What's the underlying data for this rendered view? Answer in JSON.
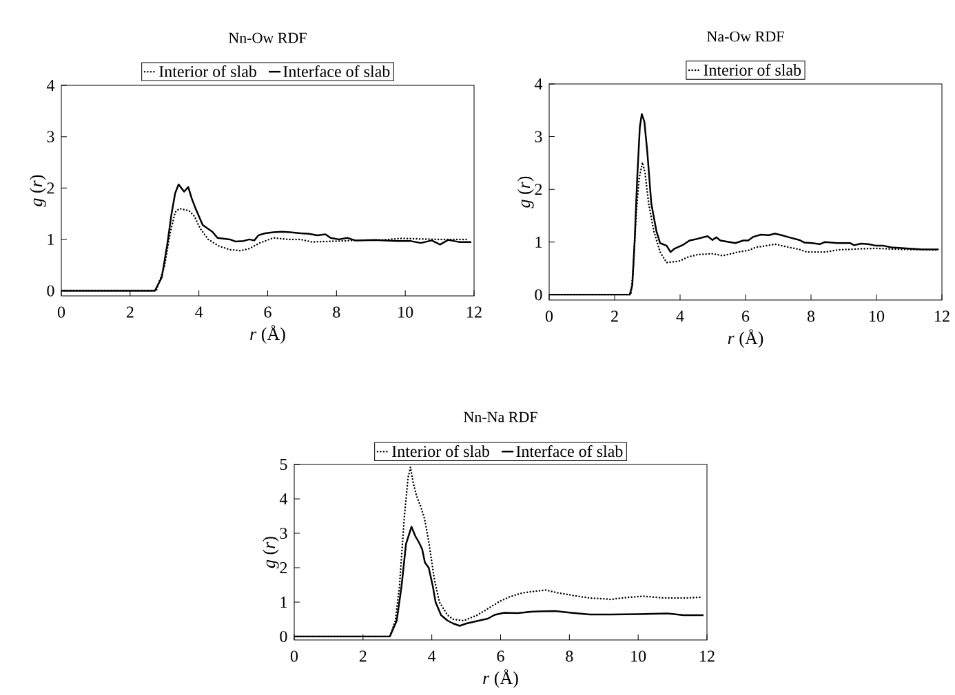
{
  "chart_data": [
    {
      "type": "line",
      "title": "Nn-Ow RDF",
      "xlabel": "*r* (Å)",
      "ylabel": "*g* (*r*)",
      "xlim": [
        0,
        12
      ],
      "ylim": [
        -0.1,
        4
      ],
      "xticks": [
        0,
        2,
        4,
        6,
        8,
        10,
        12
      ],
      "yticks": [
        0,
        1,
        2,
        3,
        4
      ],
      "legend": "top",
      "series": [
        {
          "name": "Interior of slab",
          "color": "#000000",
          "line_style": "dotted",
          "x": [
            0,
            2.76,
            3.0,
            3.16,
            3.31,
            3.43,
            3.71,
            3.87,
            4.03,
            4.27,
            4.58,
            4.9,
            5.22,
            5.46,
            5.77,
            6.17,
            6.57,
            6.96,
            7.28,
            7.76,
            8.55,
            9.34,
            9.9,
            10.93,
            11.8
          ],
          "values": [
            0,
            0,
            0.48,
            1.11,
            1.53,
            1.6,
            1.56,
            1.45,
            1.22,
            1.0,
            0.87,
            0.8,
            0.78,
            0.82,
            0.93,
            1.03,
            1.0,
            1.0,
            0.95,
            0.96,
            0.98,
            0.99,
            1.02,
            1.0,
            1.0
          ]
        },
        {
          "name": "Interface of slab",
          "color": "#000000",
          "line_style": "solid",
          "x": [
            0,
            2.72,
            2.92,
            3.08,
            3.2,
            3.31,
            3.41,
            3.57,
            3.69,
            3.79,
            3.91,
            4.11,
            4.39,
            4.54,
            4.9,
            5.06,
            5.3,
            5.46,
            5.61,
            5.73,
            5.93,
            6.17,
            6.41,
            6.65,
            6.96,
            7.2,
            7.44,
            7.68,
            7.83,
            8.07,
            8.31,
            8.55,
            9.1,
            9.74,
            10.14,
            10.45,
            10.77,
            11.01,
            11.25,
            11.56,
            11.92
          ],
          "values": [
            0,
            0,
            0.26,
            0.9,
            1.48,
            1.9,
            2.07,
            1.93,
            2.02,
            1.8,
            1.59,
            1.28,
            1.15,
            1.03,
            1.0,
            0.96,
            0.97,
            1.0,
            0.98,
            1.08,
            1.12,
            1.14,
            1.15,
            1.14,
            1.12,
            1.11,
            1.08,
            1.1,
            1.03,
            1.0,
            1.03,
            0.98,
            0.99,
            0.97,
            0.97,
            0.93,
            0.98,
            0.9,
            0.99,
            0.95,
            0.95
          ]
        }
      ]
    },
    {
      "type": "line",
      "title": "Na-Ow RDF",
      "xlabel": "*r* (Å)",
      "ylabel": "*g* (*r*)",
      "xlim": [
        0,
        12
      ],
      "ylim": [
        -0.1,
        4
      ],
      "xticks": [
        0,
        2,
        4,
        6,
        8,
        10,
        12
      ],
      "yticks": [
        0,
        1,
        2,
        3,
        4
      ],
      "legend": "top",
      "series": [
        {
          "name": "Interior of slab",
          "color": "#000000",
          "line_style": "dotted",
          "x": [
            0,
            2.5,
            2.57,
            2.67,
            2.75,
            2.85,
            2.93,
            3.04,
            3.2,
            3.39,
            3.59,
            3.98,
            4.21,
            4.52,
            4.99,
            5.3,
            5.77,
            6.08,
            6.32,
            6.63,
            6.9,
            7.25,
            7.64,
            7.88,
            8.42,
            8.81,
            9.44,
            9.99,
            10.77,
            11.86
          ],
          "values": [
            0,
            0,
            0.52,
            1.63,
            2.21,
            2.51,
            2.31,
            1.73,
            1.2,
            0.81,
            0.61,
            0.64,
            0.71,
            0.76,
            0.78,
            0.74,
            0.81,
            0.84,
            0.9,
            0.93,
            0.96,
            0.91,
            0.86,
            0.81,
            0.81,
            0.85,
            0.87,
            0.88,
            0.86,
            0.85
          ]
        },
        {
          "color": "#000000",
          "line_style": "solid",
          "x": [
            0,
            2.46,
            2.54,
            2.61,
            2.69,
            2.77,
            2.83,
            2.91,
            3.0,
            3.12,
            3.28,
            3.39,
            3.59,
            3.71,
            3.82,
            4.1,
            4.29,
            4.52,
            4.84,
            4.99,
            5.11,
            5.23,
            5.69,
            5.93,
            6.08,
            6.24,
            6.47,
            6.71,
            6.9,
            7.1,
            7.33,
            7.64,
            7.8,
            8.03,
            8.27,
            8.42,
            8.81,
            9.2,
            9.32,
            9.52,
            9.75,
            9.99,
            10.22,
            10.45,
            10.92,
            11.39,
            11.9
          ],
          "values": [
            0,
            0,
            0.18,
            1.0,
            2.21,
            3.18,
            3.43,
            3.28,
            2.7,
            1.73,
            1.2,
            0.98,
            0.93,
            0.81,
            0.87,
            0.95,
            1.03,
            1.06,
            1.11,
            1.04,
            1.09,
            1.03,
            0.98,
            1.03,
            1.03,
            1.1,
            1.14,
            1.13,
            1.16,
            1.13,
            1.09,
            1.04,
            0.99,
            0.98,
            0.96,
            1.0,
            0.98,
            0.98,
            0.94,
            0.97,
            0.96,
            0.93,
            0.93,
            0.9,
            0.88,
            0.86,
            0.86
          ]
        }
      ]
    },
    {
      "type": "line",
      "title": "Nn-Na RDF",
      "xlabel": "*r* (Å)",
      "ylabel": "*g* (*r*)",
      "xlim": [
        0,
        12
      ],
      "ylim": [
        -0.1,
        5
      ],
      "xticks": [
        0,
        2,
        4,
        6,
        8,
        10,
        12
      ],
      "yticks": [
        0,
        1,
        2,
        3,
        4,
        5
      ],
      "legend": "top",
      "series": [
        {
          "name": "Interior of slab",
          "color": "#000000",
          "line_style": "dotted",
          "x": [
            0,
            2.78,
            2.94,
            3.06,
            3.2,
            3.31,
            3.38,
            3.46,
            3.56,
            3.68,
            3.79,
            3.91,
            4.07,
            4.22,
            4.46,
            4.62,
            4.93,
            5.32,
            5.63,
            5.94,
            6.25,
            6.64,
            7.03,
            7.31,
            7.66,
            8.12,
            8.59,
            9.22,
            9.61,
            10.15,
            10.77,
            11.4,
            11.83
          ],
          "values": [
            0,
            0,
            0.46,
            1.46,
            3.46,
            4.62,
            4.92,
            4.46,
            4.08,
            3.77,
            3.42,
            2.77,
            1.69,
            1.0,
            0.62,
            0.5,
            0.46,
            0.62,
            0.81,
            1.0,
            1.15,
            1.27,
            1.32,
            1.35,
            1.27,
            1.19,
            1.12,
            1.08,
            1.13,
            1.17,
            1.12,
            1.12,
            1.14
          ]
        },
        {
          "name": "Interface of slab",
          "color": "#000000",
          "line_style": "solid",
          "x": [
            0,
            2.78,
            2.98,
            3.12,
            3.25,
            3.41,
            3.52,
            3.64,
            3.72,
            3.8,
            3.91,
            4.03,
            4.11,
            4.27,
            4.46,
            4.62,
            4.81,
            5.01,
            5.32,
            5.63,
            5.83,
            6.1,
            6.49,
            6.88,
            7.12,
            7.58,
            8.05,
            8.59,
            9.22,
            10.0,
            10.86,
            11.32,
            11.9
          ],
          "values": [
            0,
            0,
            0.46,
            1.46,
            2.69,
            3.19,
            2.92,
            2.71,
            2.54,
            2.15,
            2.0,
            1.46,
            1.0,
            0.62,
            0.46,
            0.38,
            0.31,
            0.38,
            0.45,
            0.52,
            0.63,
            0.69,
            0.68,
            0.72,
            0.73,
            0.74,
            0.69,
            0.64,
            0.64,
            0.65,
            0.67,
            0.62,
            0.62
          ]
        }
      ]
    }
  ]
}
